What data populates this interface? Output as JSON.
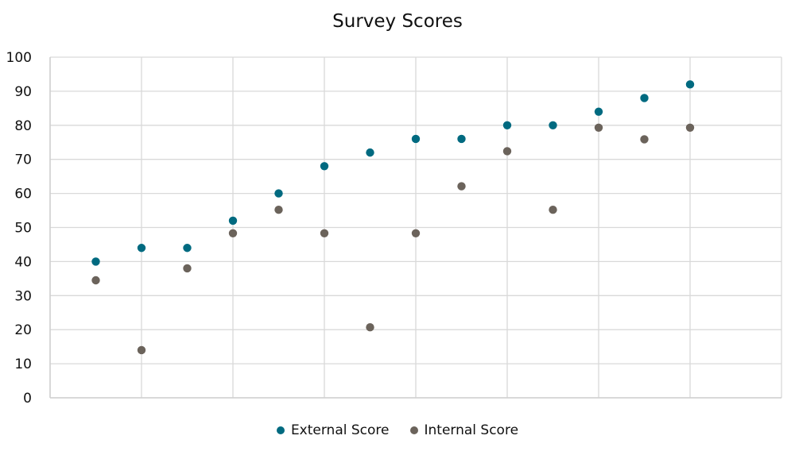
{
  "chart_data": {
    "type": "scatter",
    "title": "Survey Scores",
    "xlabel": "",
    "ylabel": "",
    "ylim": [
      0,
      100
    ],
    "yticks": [
      0,
      10,
      20,
      30,
      40,
      50,
      60,
      70,
      80,
      90,
      100
    ],
    "xticks_visible": false,
    "x": [
      1,
      2,
      3,
      4,
      5,
      6,
      7,
      8,
      9,
      10,
      11,
      12,
      13,
      14
    ],
    "xlim": [
      0,
      16
    ],
    "grid": {
      "horizontal": true,
      "vertical": true
    },
    "legend_position": "bottom",
    "series": [
      {
        "name": "External Score",
        "color": "#006a80",
        "values": [
          40,
          44,
          44,
          52,
          60,
          68,
          72,
          76,
          76,
          80,
          80,
          84,
          88,
          92
        ]
      },
      {
        "name": "Internal Score",
        "color": "#6b635b",
        "values": [
          34.5,
          14,
          38,
          48.3,
          55.2,
          48.3,
          20.7,
          48.3,
          62.1,
          72.4,
          55.2,
          79.3,
          75.9,
          79.3
        ]
      }
    ]
  },
  "legend": {
    "items": [
      {
        "label": "External Score",
        "color": "#006a80"
      },
      {
        "label": "Internal Score",
        "color": "#6b635b"
      }
    ]
  }
}
